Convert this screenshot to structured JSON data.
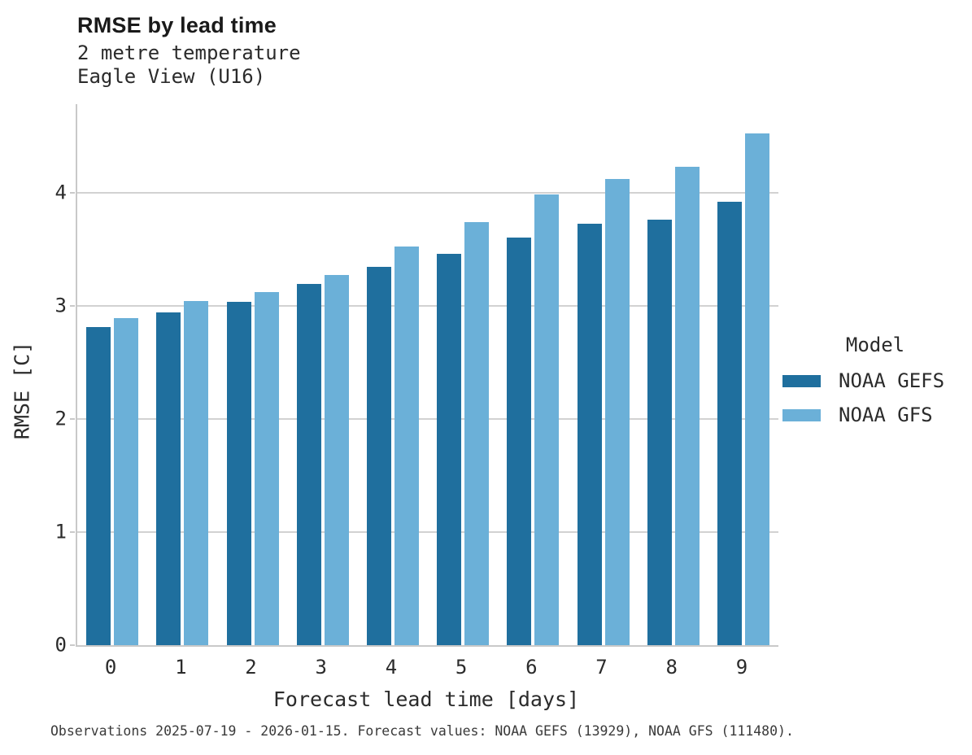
{
  "chart_data": {
    "type": "bar",
    "title": "RMSE by lead time",
    "subtitle_lines": [
      "2 metre temperature",
      "Eagle View (U16)"
    ],
    "categories": [
      "0",
      "1",
      "2",
      "3",
      "4",
      "5",
      "6",
      "7",
      "8",
      "9"
    ],
    "series": [
      {
        "name": "NOAA GEFS",
        "color": "#1f6f9e",
        "values": [
          2.81,
          2.94,
          3.03,
          3.19,
          3.34,
          3.46,
          3.6,
          3.72,
          3.76,
          3.92
        ]
      },
      {
        "name": "NOAA GFS",
        "color": "#6bb0d8",
        "values": [
          2.89,
          3.04,
          3.12,
          3.27,
          3.52,
          3.74,
          3.98,
          4.12,
          4.23,
          4.52
        ]
      }
    ],
    "xlabel": "Forecast lead time [days]",
    "ylabel": "RMSE [C]",
    "yticks": [
      0,
      1,
      2,
      3,
      4
    ],
    "ylim": [
      0,
      4.78
    ],
    "grid": "horizontal",
    "legend_title": "Model",
    "legend_position": "right",
    "footnote": "Observations 2025-07-19 - 2026-01-15. Forecast values: NOAA GEFS (13929), NOAA GFS (111480)."
  },
  "colors": {
    "gefs_bar": "#1f6f9e",
    "gfs_bar": "#6bb0d8",
    "gridline": "#d2d2d2",
    "spine": "#c9c9c9",
    "text": "#2b2b2b",
    "footnote_text": "#3a3a3a"
  }
}
